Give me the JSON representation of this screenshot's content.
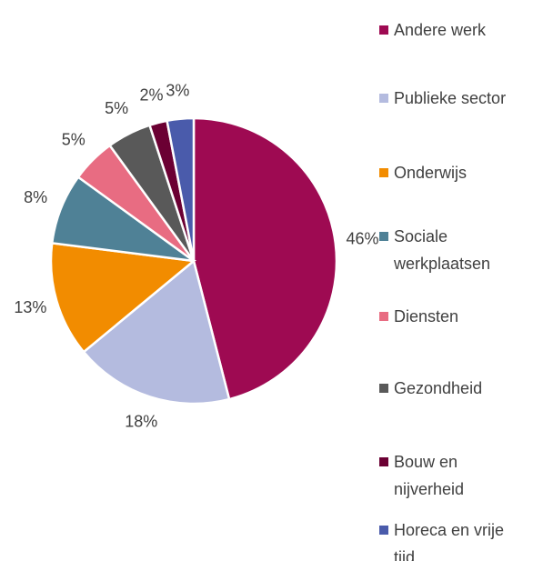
{
  "chart_data": {
    "type": "pie",
    "categories": [
      "Andere werk",
      "Publieke sector",
      "Onderwijs",
      "Sociale werkplaatsen",
      "Diensten",
      "Gezondheid",
      "Bouw en nijverheid",
      "Horeca en vrije tijd"
    ],
    "values": [
      46,
      18,
      13,
      8,
      5,
      5,
      2,
      3
    ],
    "value_labels": [
      "46%",
      "18%",
      "13%",
      "8%",
      "5%",
      "5%",
      "2%",
      "3%"
    ],
    "colors": [
      "#9e0a52",
      "#b4bbdf",
      "#f28c00",
      "#4f8196",
      "#e86c82",
      "#595959",
      "#6b0033",
      "#4a5bab"
    ]
  }
}
